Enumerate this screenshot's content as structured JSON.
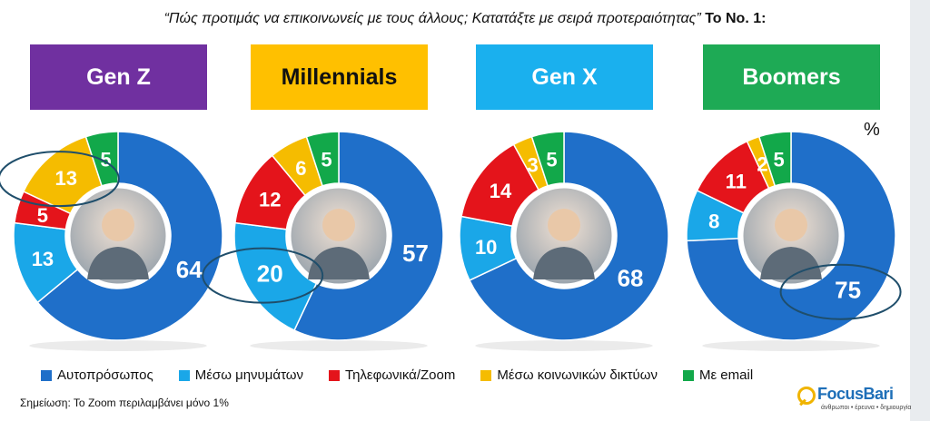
{
  "title": {
    "question": "“Πώς προτιμάς να επικοινωνείς με τους άλλους; Κατατάξτε με σειρά προτεραιότητας”",
    "rank_label": "Το No. 1:"
  },
  "unit_label": "%",
  "note": "Σημείωση: Το Zoom περιλαμβάνει μόνο 1%",
  "logo": {
    "name": "FocusBari",
    "tagline": "άνθρωποι • έρευνα • δημιουργία"
  },
  "colors": {
    "face_to_face": "#1f6fc9",
    "messages": "#1aa7e8",
    "phone_zoom": "#e4141b",
    "social": "#f5bc00",
    "email": "#12a84a"
  },
  "chart_data": {
    "type": "pie",
    "variant": "donut",
    "legend_position": "bottom",
    "series": [
      {
        "name": "Αυτοπρόσωπος",
        "color": "#1f6fc9"
      },
      {
        "name": "Μέσω μηνυμάτων",
        "color": "#1aa7e8"
      },
      {
        "name": "Τηλεφωνικά/Zoom",
        "color": "#e4141b"
      },
      {
        "name": "Μέσω κοινωνικών δικτύων",
        "color": "#f5bc00"
      },
      {
        "name": "Με email",
        "color": "#12a84a"
      }
    ],
    "charts": [
      {
        "generation": "Gen Z",
        "header_color": "#7030a0",
        "header_text_color": "#ffffff",
        "values": [
          64,
          13,
          5,
          13,
          5
        ],
        "highlight": "Μέσω κοινωνικών δικτύων"
      },
      {
        "generation": "Millennials",
        "header_color": "#ffc000",
        "header_text_color": "#111111",
        "values": [
          57,
          20,
          12,
          6,
          5
        ],
        "highlight": "Μέσω μηνυμάτων"
      },
      {
        "generation": "Gen X",
        "header_color": "#1ab0ee",
        "header_text_color": "#ffffff",
        "values": [
          68,
          10,
          14,
          3,
          5
        ],
        "highlight": null
      },
      {
        "generation": "Boomers",
        "header_color": "#1eaa55",
        "header_text_color": "#ffffff",
        "values": [
          75,
          8,
          11,
          2,
          5
        ],
        "highlight": "Αυτοπρόσωπος"
      }
    ]
  }
}
